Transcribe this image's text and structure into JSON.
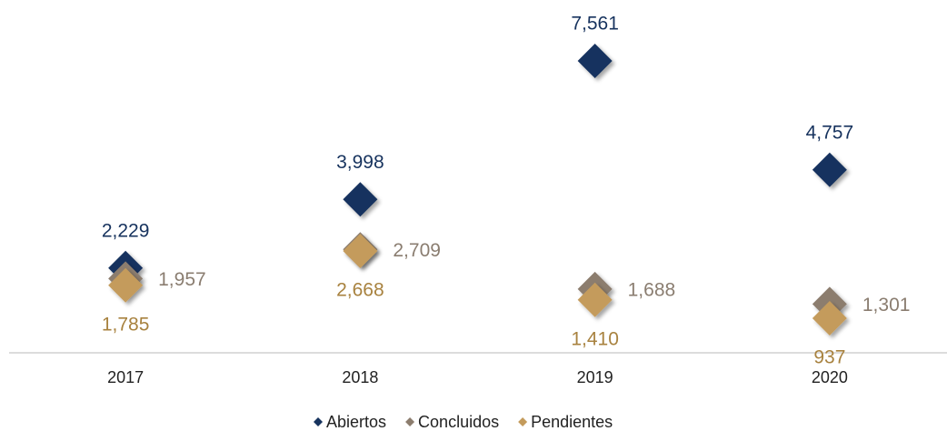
{
  "chart_data": {
    "type": "scatter",
    "categories": [
      "2017",
      "2018",
      "2019",
      "2020"
    ],
    "series": [
      {
        "name": "Abiertos",
        "color": "#17335e",
        "label_color": "#17335e",
        "values": [
          2229,
          3998,
          7561,
          4757
        ],
        "value_labels": [
          "2,229",
          "3,998",
          "7,561",
          "4,757"
        ]
      },
      {
        "name": "Concluidos",
        "color": "#8c7d6e",
        "label_color": "#8a7d70",
        "values": [
          1957,
          2709,
          1688,
          1301
        ],
        "value_labels": [
          "1,957",
          "2,709",
          "1,688",
          "1,301"
        ]
      },
      {
        "name": "Pendientes",
        "color": "#c49b5c",
        "label_color": "#a8823f",
        "values": [
          1785,
          2668,
          1410,
          937
        ],
        "value_labels": [
          "1,785",
          "2,668",
          "1,410",
          "937"
        ]
      }
    ],
    "legend": "bottom"
  }
}
